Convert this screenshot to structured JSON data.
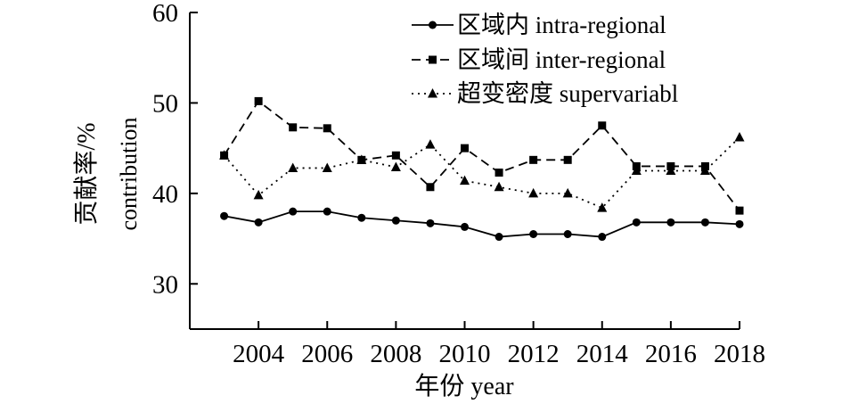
{
  "chart_data": {
    "type": "line",
    "xlabel": "年份 year",
    "ylabel_line1": "贡献率/%",
    "ylabel_line2": "contribution",
    "ylim": [
      25,
      60
    ],
    "yticks": [
      30,
      40,
      50,
      60
    ],
    "xlim": [
      2002,
      2018
    ],
    "xticks": [
      2004,
      2006,
      2008,
      2010,
      2012,
      2014,
      2016,
      2018
    ],
    "grid": false,
    "legend_position": "top-right",
    "x": [
      2003,
      2004,
      2005,
      2006,
      2007,
      2008,
      2009,
      2010,
      2011,
      2012,
      2013,
      2014,
      2015,
      2016,
      2017,
      2018
    ],
    "series": [
      {
        "name": "区域内 intra-regional",
        "marker": "circle",
        "dash": "solid",
        "values": [
          37.5,
          36.8,
          38.0,
          38.0,
          37.3,
          37.0,
          36.7,
          36.3,
          35.2,
          35.5,
          35.5,
          35.2,
          36.8,
          36.8,
          36.8,
          36.6
        ]
      },
      {
        "name": "区域间 inter-regional",
        "marker": "square",
        "dash": "dashed",
        "values": [
          44.2,
          50.2,
          47.3,
          47.2,
          43.7,
          44.2,
          40.7,
          45.0,
          42.3,
          43.7,
          43.7,
          47.5,
          43.0,
          43.0,
          43.0,
          38.1
        ]
      },
      {
        "name": "超变密度 supervariabl",
        "marker": "triangle",
        "dash": "dotted",
        "values": [
          44.2,
          39.8,
          42.8,
          42.8,
          43.7,
          42.9,
          45.4,
          41.4,
          40.7,
          40.0,
          40.0,
          38.4,
          42.5,
          42.5,
          42.5,
          46.2
        ]
      }
    ]
  }
}
